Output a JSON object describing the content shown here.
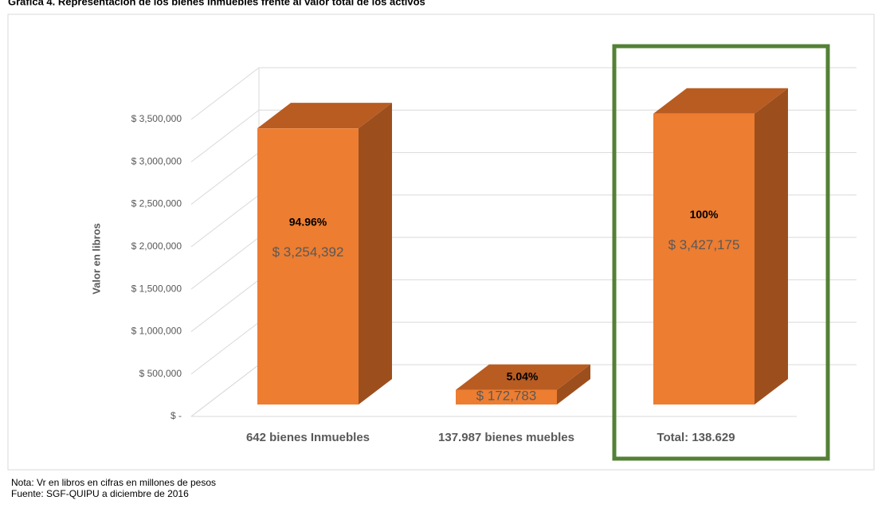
{
  "chart_data": {
    "type": "bar3d",
    "title": "Gráfica 4. Representación de los bienes inmuebles frente al valor total de los activos",
    "ylabel": "Valor en libros",
    "categories": [
      "642 bienes Inmuebles",
      "137.987 bienes muebles",
      "Total: 138.629"
    ],
    "values": [
      3254392,
      172783,
      3427175
    ],
    "value_labels": [
      "$ 3,254,392",
      "$ 172,783",
      "$ 3,427,175"
    ],
    "annotations": [
      "94.96%",
      "5.04%",
      "100%"
    ],
    "color": "#ed7d31",
    "ylim": [
      0,
      3500000
    ],
    "yticks": [
      {
        "value": 0,
        "label": "$ -"
      },
      {
        "value": 500000,
        "label": "$ 500,000"
      },
      {
        "value": 1000000,
        "label": "$ 1,000,000"
      },
      {
        "value": 1500000,
        "label": "$ 1,500,000"
      },
      {
        "value": 2000000,
        "label": "$ 2,000,000"
      },
      {
        "value": 2500000,
        "label": "$ 2,500,000"
      },
      {
        "value": 3000000,
        "label": "$ 3,000,000"
      },
      {
        "value": 3500000,
        "label": "$ 3,500,000"
      }
    ],
    "grid": true,
    "notes": [
      "Nota: Vr en libros en cifras en millones de pesos",
      "Fuente: SGF-QUIPU a diciembre de 2016"
    ]
  }
}
